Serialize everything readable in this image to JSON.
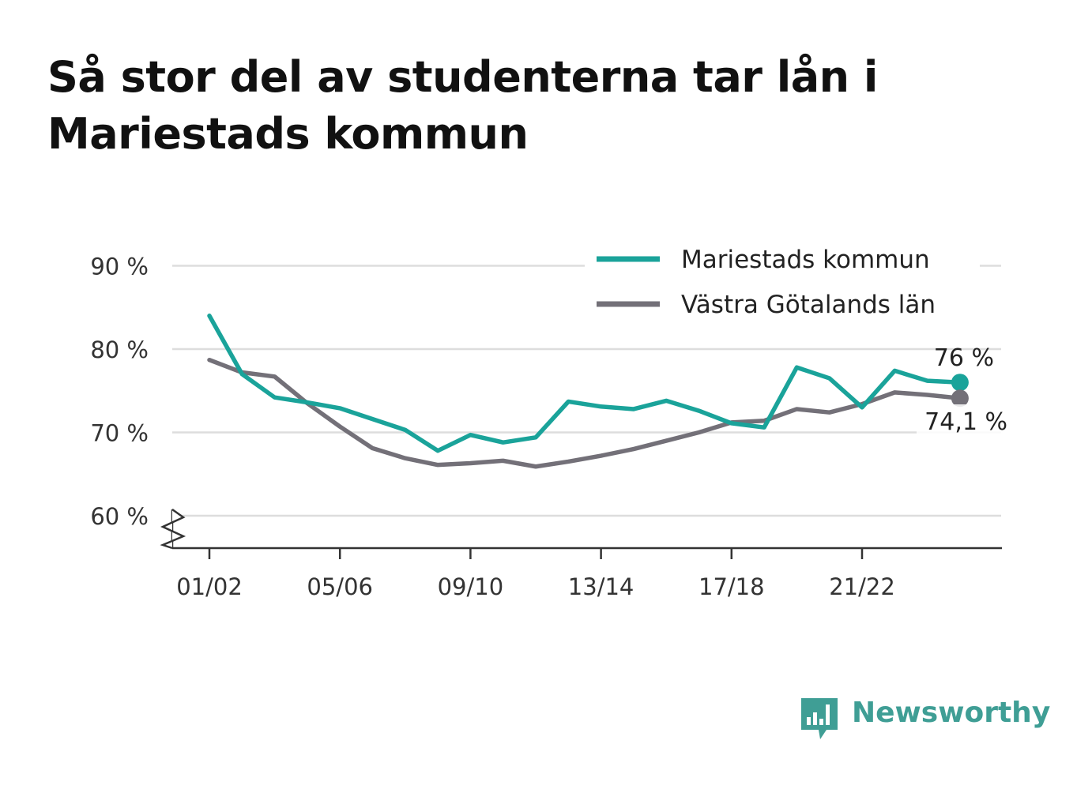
{
  "title": "Så stor del av studenterna tar lån i Mariestads kommun",
  "chart_data": {
    "type": "line",
    "title": "Så stor del av studenterna tar lån i Mariestads kommun",
    "x": [
      "01/02",
      "02/03",
      "03/04",
      "04/05",
      "05/06",
      "06/07",
      "07/08",
      "08/09",
      "09/10",
      "10/11",
      "11/12",
      "12/13",
      "13/14",
      "14/15",
      "15/16",
      "16/17",
      "17/18",
      "18/19",
      "19/20",
      "20/21",
      "21/22",
      "22/23",
      "23/24",
      "24/25"
    ],
    "x_tick_labels": [
      "01/02",
      "05/06",
      "09/10",
      "13/14",
      "17/18",
      "21/22"
    ],
    "y_tick_labels": [
      "60 %",
      "70 %",
      "80 %",
      "90 %"
    ],
    "y_ticks": [
      60,
      70,
      80,
      90
    ],
    "ylim": [
      56,
      93
    ],
    "xlabel": "",
    "ylabel": "",
    "grid": true,
    "y_axis_break": true,
    "legend_position": "top-right",
    "series": [
      {
        "name": "Mariestads kommun",
        "color": "#1aa39a",
        "values": [
          84.0,
          77.0,
          74.2,
          73.6,
          72.9,
          71.6,
          70.3,
          67.8,
          69.7,
          68.8,
          69.4,
          73.7,
          73.1,
          72.8,
          73.8,
          72.6,
          71.1,
          70.6,
          77.8,
          76.5,
          73.0,
          77.4,
          76.2,
          76.0
        ],
        "end_label": "76 %"
      },
      {
        "name": "Västra Götalands län",
        "color": "#737078",
        "values": [
          78.7,
          77.2,
          76.7,
          73.5,
          70.7,
          68.1,
          66.9,
          66.1,
          66.3,
          66.6,
          65.9,
          66.5,
          67.2,
          68.0,
          69.0,
          70.0,
          71.2,
          71.4,
          72.8,
          72.4,
          73.4,
          74.8,
          74.5,
          74.1
        ],
        "end_label": "74,1 %"
      }
    ]
  },
  "branding": {
    "logo_text": "Newsworthy",
    "logo_color": "#3f9e95",
    "icon": "bar-chart-speech-bubble-icon"
  }
}
